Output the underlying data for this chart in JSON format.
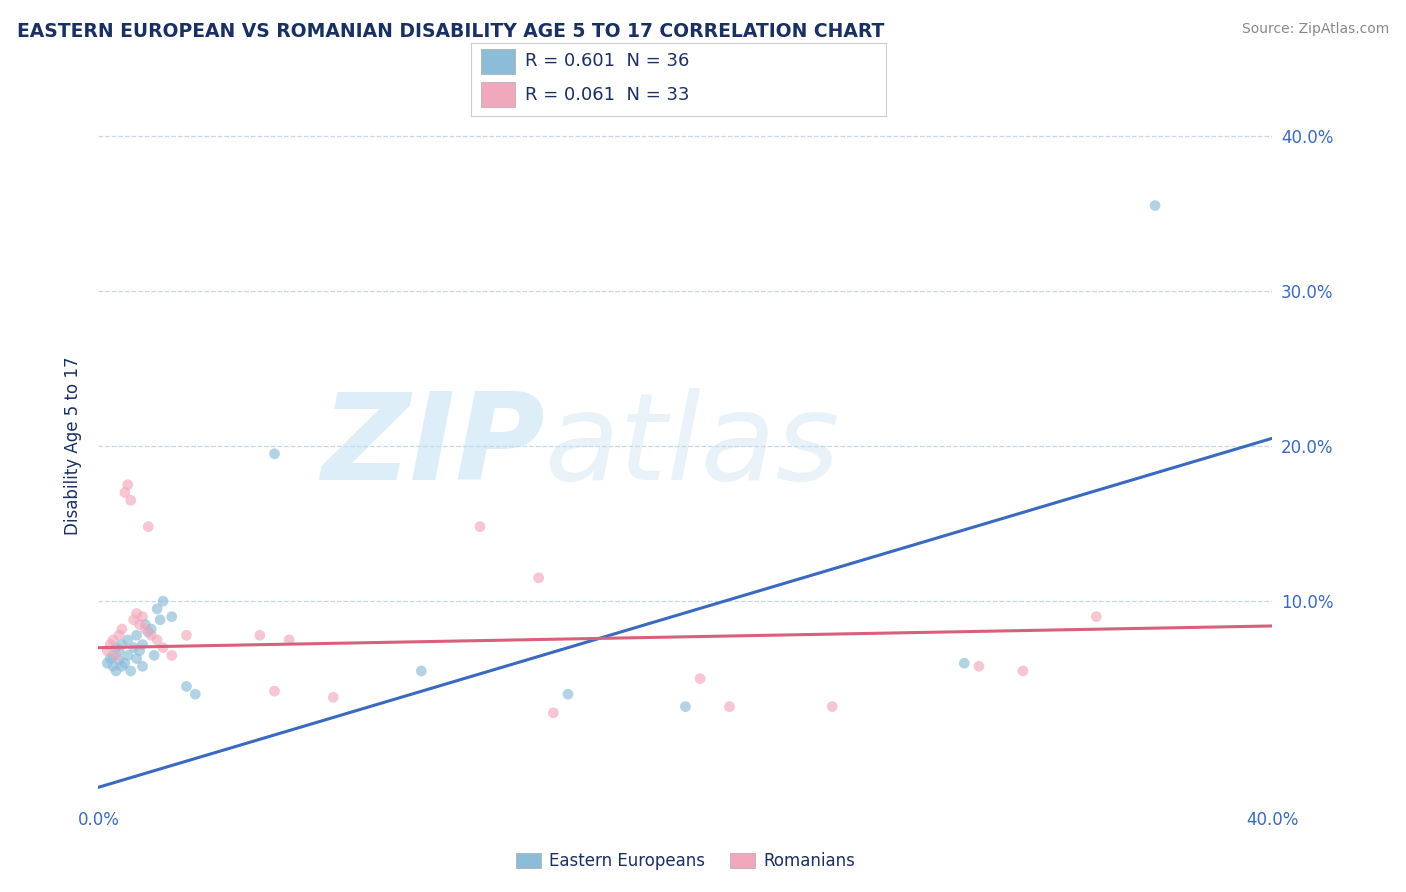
{
  "title": "EASTERN EUROPEAN VS ROMANIAN DISABILITY AGE 5 TO 17 CORRELATION CHART",
  "source": "Source: ZipAtlas.com",
  "ylabel": "Disability Age 5 to 17",
  "xlim": [
    0.0,
    0.4
  ],
  "ylim": [
    -0.03,
    0.43
  ],
  "x_ticks": [
    0.0,
    0.1,
    0.2,
    0.3,
    0.4
  ],
  "x_tick_labels": [
    "0.0%",
    "",
    "",
    "",
    "40.0%"
  ],
  "y_ticks": [
    0.0,
    0.1,
    0.2,
    0.3,
    0.4
  ],
  "y_tick_labels": [
    "",
    "10.0%",
    "20.0%",
    "30.0%",
    "40.0%"
  ],
  "watermark_line1": "ZIP",
  "watermark_line2": "atlas",
  "legend_r_entries": [
    {
      "label": "R = 0.601  N = 36",
      "color": "#a8c8e8"
    },
    {
      "label": "R = 0.061  N = 33",
      "color": "#f0b0c0"
    }
  ],
  "eastern_european_x": [
    0.003,
    0.004,
    0.005,
    0.005,
    0.006,
    0.006,
    0.007,
    0.007,
    0.008,
    0.008,
    0.009,
    0.01,
    0.01,
    0.011,
    0.012,
    0.013,
    0.013,
    0.014,
    0.015,
    0.015,
    0.016,
    0.017,
    0.018,
    0.019,
    0.02,
    0.021,
    0.022,
    0.025,
    0.03,
    0.033,
    0.06,
    0.11,
    0.16,
    0.2,
    0.295,
    0.36
  ],
  "eastern_european_y": [
    0.06,
    0.063,
    0.058,
    0.065,
    0.055,
    0.07,
    0.062,
    0.068,
    0.058,
    0.072,
    0.06,
    0.065,
    0.075,
    0.055,
    0.07,
    0.063,
    0.078,
    0.068,
    0.058,
    0.072,
    0.085,
    0.08,
    0.082,
    0.065,
    0.095,
    0.088,
    0.1,
    0.09,
    0.045,
    0.04,
    0.195,
    0.055,
    0.04,
    0.032,
    0.06,
    0.355
  ],
  "romanian_x": [
    0.003,
    0.004,
    0.005,
    0.006,
    0.007,
    0.008,
    0.009,
    0.01,
    0.011,
    0.012,
    0.013,
    0.014,
    0.015,
    0.016,
    0.017,
    0.018,
    0.02,
    0.022,
    0.025,
    0.03,
    0.055,
    0.06,
    0.065,
    0.08,
    0.13,
    0.15,
    0.155,
    0.205,
    0.215,
    0.25,
    0.3,
    0.315,
    0.34
  ],
  "romanian_y": [
    0.068,
    0.072,
    0.075,
    0.065,
    0.078,
    0.082,
    0.17,
    0.175,
    0.165,
    0.088,
    0.092,
    0.085,
    0.09,
    0.082,
    0.148,
    0.078,
    0.075,
    0.07,
    0.065,
    0.078,
    0.078,
    0.042,
    0.075,
    0.038,
    0.148,
    0.115,
    0.028,
    0.05,
    0.032,
    0.032,
    0.058,
    0.055,
    0.09
  ],
  "blue_line_x": [
    0.0,
    0.4
  ],
  "blue_line_y": [
    -0.02,
    0.205
  ],
  "pink_line_x": [
    0.0,
    0.4
  ],
  "pink_line_y": [
    0.07,
    0.084
  ],
  "blue_scatter_color": "#8bbcd8",
  "pink_scatter_color": "#f2a8bc",
  "blue_line_color": "#3a6abf",
  "pink_line_color": "#d9607a",
  "title_color": "#1a3060",
  "axis_label_color": "#1a3060",
  "tick_color": "#3a6abf",
  "grid_color": "#c5d8ea",
  "background_color": "#ffffff",
  "source_color": "#888888",
  "watermark_color": "#ddeef8",
  "legend_text_color": "#1a3060",
  "scatter_size": 60,
  "scatter_alpha": 0.65,
  "line_width": 2.2
}
